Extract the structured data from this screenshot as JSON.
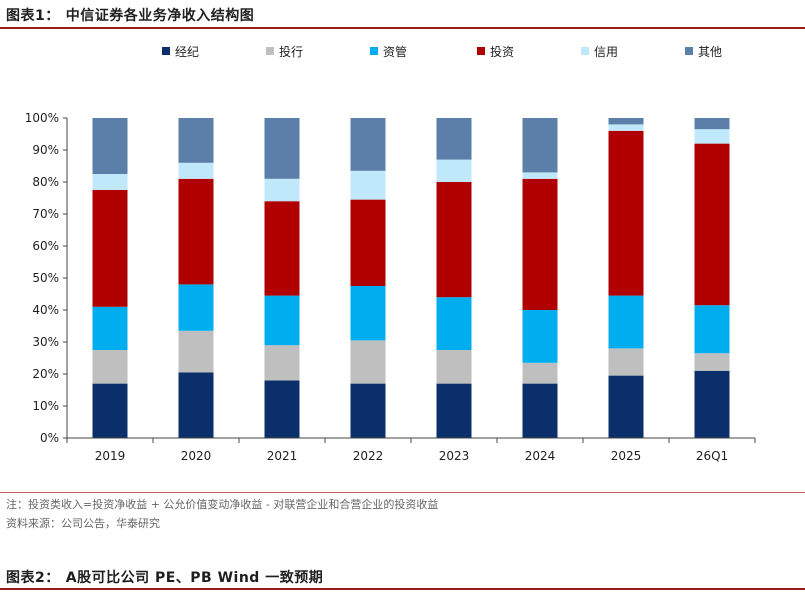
{
  "figure1": {
    "label": "图表1：",
    "title": "中信证券各业务净收入结构图"
  },
  "notes": {
    "note": "注：投资类收入=投资净收益 + 公允价值变动净收益 - 对联营企业和合营企业的投资收益",
    "source": "资料来源：公司公告，华泰研究"
  },
  "figure2": {
    "label": "图表2：",
    "title": "A股可比公司 PE、PB Wind 一致预期"
  },
  "chart_data": {
    "type": "bar",
    "stacked": true,
    "categories": [
      "2019",
      "2020",
      "2021",
      "2022",
      "2023",
      "2024",
      "2025",
      "26Q1"
    ],
    "series": [
      {
        "name": "经纪",
        "color": "#0b2f6b",
        "values": [
          17,
          20.5,
          18,
          17,
          17,
          17,
          19.5,
          21
        ]
      },
      {
        "name": "投行",
        "color": "#bfbfbf",
        "values": [
          10.5,
          13,
          11,
          13.5,
          10.5,
          6.5,
          8.5,
          5.5
        ]
      },
      {
        "name": "资管",
        "color": "#00adef",
        "values": [
          13.5,
          14.5,
          15.5,
          17,
          16.5,
          16.5,
          16.5,
          15
        ]
      },
      {
        "name": "投资",
        "color": "#b00000",
        "values": [
          36.5,
          33,
          29.5,
          27,
          36,
          41,
          51.5,
          50.5
        ]
      },
      {
        "name": "信用",
        "color": "#bfe9fb",
        "values": [
          5,
          5,
          7,
          9,
          7,
          2,
          2,
          4.5
        ]
      },
      {
        "name": "其他",
        "color": "#5b7fa8",
        "values": [
          17.5,
          14,
          19,
          16.5,
          13,
          17,
          2,
          3.5
        ]
      }
    ],
    "y_ticks": [
      "0%",
      "10%",
      "20%",
      "30%",
      "40%",
      "50%",
      "60%",
      "70%",
      "80%",
      "90%",
      "100%"
    ],
    "ylim": [
      0,
      100
    ],
    "y_unit": "%",
    "legend_position": "top",
    "grid": false
  }
}
